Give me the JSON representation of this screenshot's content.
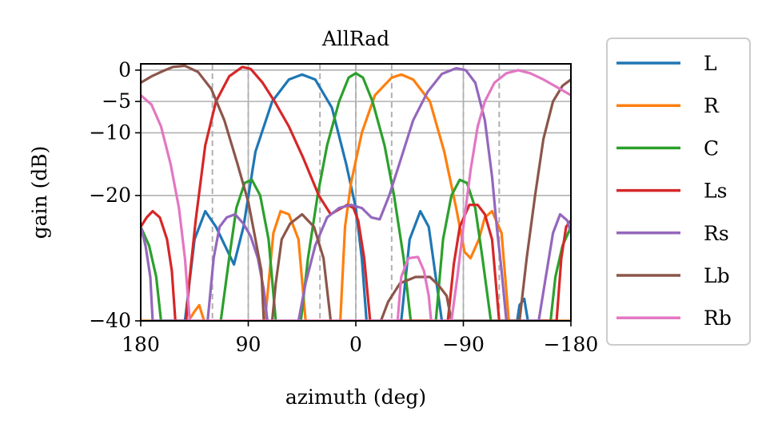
{
  "chart_data": {
    "type": "line",
    "title": "AllRad",
    "xlabel": "azimuth (deg)",
    "ylabel": "gain (dB)",
    "xlim": [
      180,
      -180
    ],
    "ylim": [
      -40,
      1
    ],
    "x_ticks": [
      180,
      90,
      0,
      -90,
      -180
    ],
    "x_tick_labels": [
      "180",
      "90",
      "0",
      "−90",
      "−180"
    ],
    "y_ticks": [
      0,
      -5,
      -10,
      -20,
      -40
    ],
    "y_tick_labels": [
      "0",
      "−5",
      "−10",
      "−20",
      "−40"
    ],
    "grid": true,
    "speaker_azimuths": [
      120,
      90,
      30,
      0,
      -30,
      -90,
      -120
    ],
    "legend_position": "outside right",
    "series": [
      {
        "name": "L",
        "color": "#1f77b4",
        "points": [
          [
            180,
            -40
          ],
          [
            143,
            -40
          ],
          [
            135,
            -27
          ],
          [
            126,
            -22.5
          ],
          [
            117,
            -25
          ],
          [
            102,
            -31
          ],
          [
            94,
            -25
          ],
          [
            84,
            -13
          ],
          [
            70,
            -5
          ],
          [
            56,
            -1.5
          ],
          [
            45,
            -0.7
          ],
          [
            34,
            -1.5
          ],
          [
            20,
            -6
          ],
          [
            8,
            -15
          ],
          [
            0,
            -22
          ],
          [
            -5,
            -30
          ],
          [
            -9,
            -40
          ],
          [
            -38,
            -40
          ],
          [
            -45,
            -27
          ],
          [
            -54,
            -22.5
          ],
          [
            -61,
            -25
          ],
          [
            -72,
            -40
          ],
          [
            -135,
            -40
          ],
          [
            -137,
            -37.5
          ],
          [
            -141,
            -36.5
          ],
          [
            -144,
            -40
          ],
          [
            -180,
            -40
          ]
        ]
      },
      {
        "name": "R",
        "color": "#ff7f0e",
        "points": [
          [
            180,
            -40
          ],
          [
            140,
            -40
          ],
          [
            135,
            -38.5
          ],
          [
            131,
            -37.5
          ],
          [
            127,
            -40
          ],
          [
            76,
            -40
          ],
          [
            69,
            -26
          ],
          [
            63,
            -22.5
          ],
          [
            56,
            -23
          ],
          [
            48,
            -27
          ],
          [
            42,
            -40
          ],
          [
            13,
            -40
          ],
          [
            9,
            -25
          ],
          [
            4,
            -18
          ],
          [
            -5,
            -10
          ],
          [
            -16,
            -4
          ],
          [
            -30,
            -1.2
          ],
          [
            -38,
            -0.7
          ],
          [
            -48,
            -1.5
          ],
          [
            -62,
            -5
          ],
          [
            -74,
            -13
          ],
          [
            -84,
            -22
          ],
          [
            -91,
            -29
          ],
          [
            -96,
            -30
          ],
          [
            -103,
            -27
          ],
          [
            -108,
            -23.5
          ],
          [
            -114,
            -22.5
          ],
          [
            -122,
            -26
          ],
          [
            -128,
            -40
          ],
          [
            -180,
            -40
          ]
        ]
      },
      {
        "name": "C",
        "color": "#2ca02c",
        "points": [
          [
            180,
            -25
          ],
          [
            173,
            -28
          ],
          [
            167,
            -33
          ],
          [
            163,
            -40
          ],
          [
            113,
            -40
          ],
          [
            106,
            -30
          ],
          [
            100,
            -22
          ],
          [
            93,
            -18
          ],
          [
            87,
            -17.5
          ],
          [
            80,
            -20
          ],
          [
            73,
            -27
          ],
          [
            67,
            -40
          ],
          [
            46,
            -40
          ],
          [
            40,
            -30
          ],
          [
            32,
            -20
          ],
          [
            24,
            -12
          ],
          [
            14,
            -5
          ],
          [
            6,
            -1.2
          ],
          [
            0,
            -0.5
          ],
          [
            -6,
            -1.2
          ],
          [
            -14,
            -5
          ],
          [
            -24,
            -12
          ],
          [
            -32,
            -20
          ],
          [
            -40,
            -30
          ],
          [
            -46,
            -40
          ],
          [
            -67,
            -40
          ],
          [
            -73,
            -27
          ],
          [
            -80,
            -20
          ],
          [
            -87,
            -17.5
          ],
          [
            -93,
            -18
          ],
          [
            -100,
            -22
          ],
          [
            -106,
            -30
          ],
          [
            -113,
            -40
          ],
          [
            -163,
            -40
          ],
          [
            -167,
            -33
          ],
          [
            -173,
            -28
          ],
          [
            -180,
            -25
          ]
        ]
      },
      {
        "name": "Ls",
        "color": "#d62728",
        "points": [
          [
            180,
            -25
          ],
          [
            175,
            -23.5
          ],
          [
            170,
            -22.5
          ],
          [
            164,
            -23.5
          ],
          [
            158,
            -27
          ],
          [
            154,
            -32
          ],
          [
            151,
            -40
          ],
          [
            142,
            -40
          ],
          [
            139,
            -33
          ],
          [
            134,
            -24
          ],
          [
            126,
            -12
          ],
          [
            117,
            -5
          ],
          [
            106,
            -1
          ],
          [
            95,
            0.5
          ],
          [
            88,
            0.2
          ],
          [
            78,
            -2
          ],
          [
            68,
            -5
          ],
          [
            56,
            -9
          ],
          [
            44,
            -14
          ],
          [
            31,
            -20
          ],
          [
            21,
            -23
          ],
          [
            14,
            -22.2
          ],
          [
            7,
            -21.5
          ],
          [
            2,
            -22
          ],
          [
            -2,
            -24
          ],
          [
            -7,
            -30
          ],
          [
            -12,
            -40
          ],
          [
            -77,
            -40
          ],
          [
            -82,
            -31
          ],
          [
            -87,
            -25
          ],
          [
            -95,
            -21.5
          ],
          [
            -102,
            -21.5
          ],
          [
            -108,
            -23
          ],
          [
            -114,
            -27
          ],
          [
            -120,
            -40
          ],
          [
            -168,
            -40
          ],
          [
            -172,
            -30
          ],
          [
            -176,
            -25
          ],
          [
            -180,
            -24
          ]
        ]
      },
      {
        "name": "Rs",
        "color": "#9467bd",
        "points": [
          [
            180,
            -25
          ],
          [
            176,
            -28
          ],
          [
            172,
            -33
          ],
          [
            170,
            -40
          ],
          [
            124,
            -40
          ],
          [
            119,
            -30
          ],
          [
            114,
            -25
          ],
          [
            108,
            -23.5
          ],
          [
            101,
            -23
          ],
          [
            94,
            -24.5
          ],
          [
            88,
            -26.5
          ],
          [
            82,
            -30
          ],
          [
            77,
            -35
          ],
          [
            74,
            -40
          ],
          [
            48,
            -40
          ],
          [
            42,
            -34
          ],
          [
            34,
            -28
          ],
          [
            24,
            -23.5
          ],
          [
            14,
            -22
          ],
          [
            4,
            -21.5
          ],
          [
            -5,
            -22
          ],
          [
            -13,
            -23.5
          ],
          [
            -20,
            -23.8
          ],
          [
            -28,
            -20
          ],
          [
            -38,
            -14
          ],
          [
            -48,
            -8
          ],
          [
            -60,
            -3.5
          ],
          [
            -72,
            -0.6
          ],
          [
            -84,
            0.3
          ],
          [
            -92,
            0
          ],
          [
            -100,
            -2
          ],
          [
            -108,
            -8
          ],
          [
            -114,
            -17
          ],
          [
            -118,
            -25
          ],
          [
            -122,
            -32
          ],
          [
            -126,
            -40
          ],
          [
            -153,
            -40
          ],
          [
            -159,
            -33
          ],
          [
            -165,
            -26
          ],
          [
            -171,
            -23
          ],
          [
            -177,
            -24
          ],
          [
            -180,
            -26
          ]
        ]
      },
      {
        "name": "Lb",
        "color": "#8c564b",
        "points": [
          [
            180,
            -2
          ],
          [
            171,
            -1
          ],
          [
            162,
            -0.2
          ],
          [
            153,
            0.5
          ],
          [
            143,
            0.7
          ],
          [
            132,
            -0.3
          ],
          [
            121,
            -3
          ],
          [
            110,
            -8
          ],
          [
            99,
            -15
          ],
          [
            90,
            -21
          ],
          [
            85,
            -26
          ],
          [
            79,
            -32
          ],
          [
            77,
            -40
          ],
          [
            70,
            -40
          ],
          [
            67,
            -34
          ],
          [
            62,
            -27
          ],
          [
            55,
            -24.5
          ],
          [
            45,
            -23
          ],
          [
            35,
            -25
          ],
          [
            27,
            -30
          ],
          [
            21,
            -40
          ],
          [
            -21,
            -40
          ],
          [
            -27,
            -37
          ],
          [
            -37,
            -34
          ],
          [
            -50,
            -33
          ],
          [
            -62,
            -33
          ],
          [
            -70,
            -34.5
          ],
          [
            -76,
            -36
          ],
          [
            -80,
            -40
          ],
          [
            -137,
            -40
          ],
          [
            -143,
            -30
          ],
          [
            -150,
            -20
          ],
          [
            -157,
            -11
          ],
          [
            -165,
            -5
          ],
          [
            -173,
            -2.5
          ],
          [
            -180,
            -1.5
          ]
        ]
      },
      {
        "name": "Rb",
        "color": "#e377c2",
        "points": [
          [
            180,
            -4
          ],
          [
            171,
            -5.5
          ],
          [
            163,
            -9
          ],
          [
            155,
            -15
          ],
          [
            148,
            -22
          ],
          [
            143,
            -30
          ],
          [
            139,
            -40
          ],
          [
            -35,
            -40
          ],
          [
            -38,
            -33
          ],
          [
            -44,
            -30
          ],
          [
            -52,
            -29.8
          ],
          [
            -57,
            -32
          ],
          [
            -61,
            -36
          ],
          [
            -63,
            -40
          ],
          [
            -80,
            -40
          ],
          [
            -85,
            -33
          ],
          [
            -90,
            -25
          ],
          [
            -96,
            -16
          ],
          [
            -102,
            -9
          ],
          [
            -108,
            -5
          ],
          [
            -116,
            -2
          ],
          [
            -126,
            -0.5
          ],
          [
            -136,
            0
          ],
          [
            -146,
            -0.5
          ],
          [
            -157,
            -1.5
          ],
          [
            -169,
            -2.8
          ],
          [
            -180,
            -4
          ]
        ]
      }
    ]
  }
}
